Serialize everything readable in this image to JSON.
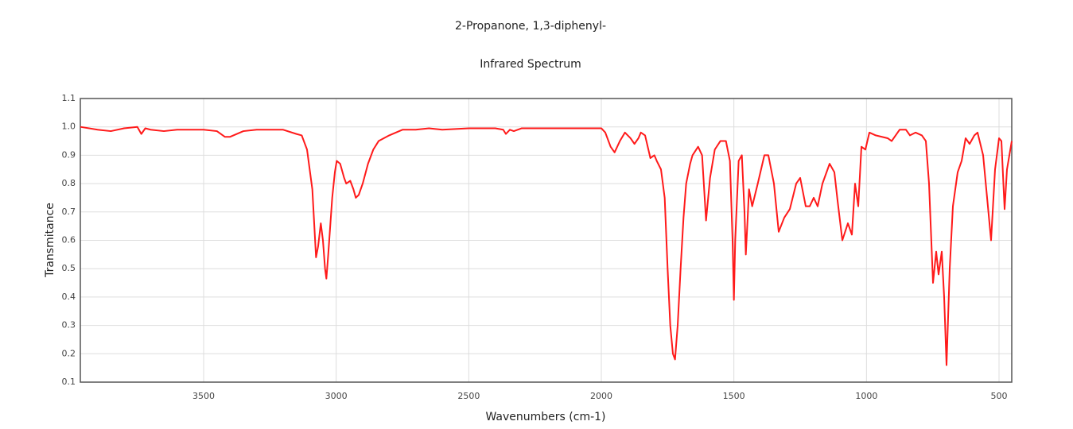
{
  "chart_data": {
    "type": "line",
    "title": "2-Propanone, 1,3-diphenyl-",
    "subtitle": "Infrared Spectrum",
    "x_label": "Wavenumbers (cm-1)",
    "y_label": "Transmitance",
    "x": [
      3965,
      3900,
      3850,
      3800,
      3750,
      3735,
      3720,
      3700,
      3650,
      3600,
      3500,
      3450,
      3420,
      3400,
      3350,
      3300,
      3200,
      3150,
      3130,
      3110,
      3090,
      3076,
      3068,
      3058,
      3050,
      3042,
      3037,
      3030,
      3015,
      3005,
      2998,
      2985,
      2970,
      2962,
      2947,
      2935,
      2926,
      2915,
      2900,
      2880,
      2860,
      2840,
      2800,
      2750,
      2700,
      2650,
      2600,
      2500,
      2400,
      2370,
      2360,
      2345,
      2330,
      2300,
      2200,
      2100,
      2000,
      1985,
      1965,
      1950,
      1930,
      1911,
      1890,
      1875,
      1860,
      1851,
      1835,
      1815,
      1800,
      1791,
      1775,
      1761,
      1750,
      1740,
      1730,
      1722,
      1712,
      1701,
      1690,
      1680,
      1665,
      1656,
      1635,
      1620,
      1605,
      1590,
      1572,
      1551,
      1530,
      1515,
      1505,
      1500,
      1495,
      1482,
      1470,
      1460,
      1455,
      1448,
      1443,
      1431,
      1410,
      1385,
      1370,
      1349,
      1331,
      1310,
      1289,
      1265,
      1250,
      1229,
      1214,
      1199,
      1184,
      1166,
      1139,
      1121,
      1109,
      1091,
      1070,
      1055,
      1043,
      1031,
      1019,
      1004,
      989,
      965,
      920,
      905,
      875,
      851,
      836,
      815,
      791,
      776,
      764,
      749,
      737,
      728,
      716,
      707,
      698,
      686,
      674,
      656,
      641,
      626,
      611,
      593,
      581,
      560,
      545,
      530,
      515,
      500,
      491,
      479,
      470,
      461,
      452
    ],
    "series": [
      {
        "name": "Transmitance",
        "color": "#ff1a1a",
        "values": [
          1.0,
          0.99,
          0.985,
          0.995,
          1.0,
          0.975,
          0.995,
          0.99,
          0.985,
          0.99,
          0.99,
          0.985,
          0.965,
          0.965,
          0.985,
          0.99,
          0.99,
          0.975,
          0.97,
          0.92,
          0.78,
          0.54,
          0.58,
          0.66,
          0.6,
          0.5,
          0.465,
          0.55,
          0.75,
          0.84,
          0.88,
          0.87,
          0.82,
          0.8,
          0.81,
          0.78,
          0.75,
          0.76,
          0.8,
          0.87,
          0.92,
          0.95,
          0.97,
          0.99,
          0.99,
          0.995,
          0.99,
          0.995,
          0.995,
          0.99,
          0.975,
          0.99,
          0.985,
          0.995,
          0.995,
          0.995,
          0.995,
          0.98,
          0.93,
          0.91,
          0.95,
          0.98,
          0.96,
          0.94,
          0.96,
          0.98,
          0.97,
          0.89,
          0.9,
          0.88,
          0.85,
          0.75,
          0.5,
          0.3,
          0.2,
          0.18,
          0.3,
          0.5,
          0.68,
          0.8,
          0.87,
          0.9,
          0.93,
          0.9,
          0.67,
          0.82,
          0.92,
          0.95,
          0.95,
          0.88,
          0.6,
          0.39,
          0.6,
          0.88,
          0.9,
          0.7,
          0.55,
          0.68,
          0.78,
          0.72,
          0.8,
          0.9,
          0.9,
          0.8,
          0.63,
          0.68,
          0.71,
          0.8,
          0.82,
          0.72,
          0.72,
          0.75,
          0.72,
          0.8,
          0.87,
          0.84,
          0.74,
          0.6,
          0.66,
          0.62,
          0.8,
          0.72,
          0.93,
          0.92,
          0.98,
          0.97,
          0.96,
          0.95,
          0.99,
          0.99,
          0.97,
          0.98,
          0.97,
          0.95,
          0.8,
          0.45,
          0.56,
          0.48,
          0.56,
          0.4,
          0.16,
          0.5,
          0.72,
          0.84,
          0.88,
          0.96,
          0.94,
          0.97,
          0.98,
          0.9,
          0.75,
          0.6,
          0.85,
          0.96,
          0.95,
          0.71,
          0.85,
          0.9,
          0.95
        ]
      }
    ],
    "xlim": [
      3965,
      452
    ],
    "xticks": [
      3500,
      3000,
      2500,
      2000,
      1500,
      1000,
      500
    ],
    "ylim": [
      0.1,
      1.1
    ],
    "yticks": [
      0.1,
      0.2,
      0.3,
      0.4,
      0.5,
      0.6,
      0.7,
      0.8,
      0.9,
      {
        "value": 1,
        "label": "1.0"
      },
      1.1
    ],
    "grid": true
  }
}
